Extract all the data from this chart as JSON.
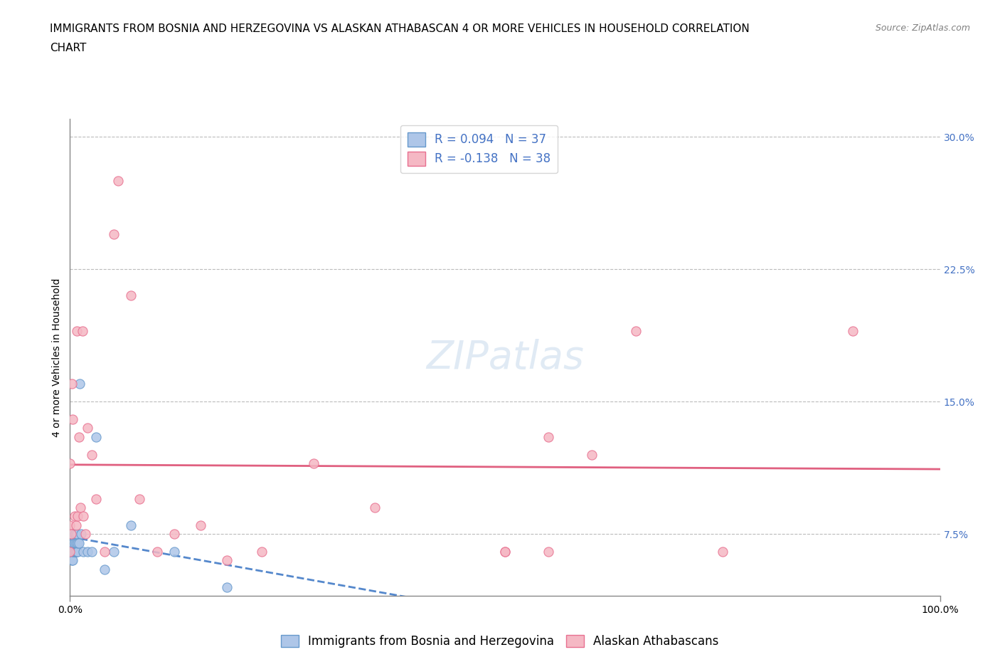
{
  "title_line1": "IMMIGRANTS FROM BOSNIA AND HERZEGOVINA VS ALASKAN ATHABASCAN 4 OR MORE VEHICLES IN HOUSEHOLD CORRELATION",
  "title_line2": "CHART",
  "source": "Source: ZipAtlas.com",
  "ylabel": "4 or more Vehicles in Household",
  "xlim": [
    0.0,
    1.0
  ],
  "ylim": [
    0.04,
    0.31
  ],
  "xticks": [
    0.0,
    1.0
  ],
  "xticklabels": [
    "0.0%",
    "100.0%"
  ],
  "yticks": [
    0.075,
    0.15,
    0.225,
    0.3
  ],
  "yticklabels": [
    "7.5%",
    "15.0%",
    "22.5%",
    "30.0%"
  ],
  "blue_fill_color": "#aec6e8",
  "blue_edge_color": "#6699cc",
  "pink_fill_color": "#f5b8c4",
  "pink_edge_color": "#e87090",
  "blue_trend_color": "#5588cc",
  "pink_trend_color": "#e06080",
  "legend_r_blue": "R = 0.094",
  "legend_n_blue": "N = 37",
  "legend_r_pink": "R = -0.138",
  "legend_n_pink": "N = 38",
  "r_blue": 0.094,
  "r_pink": -0.138,
  "watermark": "ZIPatlas",
  "blue_points_x": [
    0.0,
    0.0,
    0.001,
    0.001,
    0.001,
    0.002,
    0.002,
    0.002,
    0.002,
    0.003,
    0.003,
    0.003,
    0.004,
    0.004,
    0.005,
    0.005,
    0.005,
    0.006,
    0.006,
    0.007,
    0.007,
    0.008,
    0.008,
    0.009,
    0.009,
    0.01,
    0.011,
    0.013,
    0.015,
    0.02,
    0.025,
    0.03,
    0.04,
    0.05,
    0.07,
    0.12,
    0.18
  ],
  "blue_points_y": [
    0.07,
    0.075,
    0.065,
    0.07,
    0.075,
    0.06,
    0.065,
    0.07,
    0.075,
    0.06,
    0.065,
    0.07,
    0.065,
    0.07,
    0.065,
    0.07,
    0.075,
    0.065,
    0.075,
    0.065,
    0.07,
    0.065,
    0.075,
    0.065,
    0.07,
    0.07,
    0.16,
    0.075,
    0.065,
    0.065,
    0.065,
    0.13,
    0.055,
    0.065,
    0.08,
    0.065,
    0.045
  ],
  "pink_points_x": [
    0.0,
    0.0,
    0.0,
    0.001,
    0.002,
    0.003,
    0.005,
    0.007,
    0.008,
    0.009,
    0.01,
    0.012,
    0.014,
    0.015,
    0.018,
    0.02,
    0.025,
    0.03,
    0.04,
    0.05,
    0.055,
    0.07,
    0.08,
    0.1,
    0.12,
    0.15,
    0.18,
    0.22,
    0.28,
    0.35,
    0.5,
    0.55,
    0.6,
    0.65,
    0.75,
    0.9,
    0.55,
    0.5
  ],
  "pink_points_y": [
    0.065,
    0.08,
    0.115,
    0.075,
    0.16,
    0.14,
    0.085,
    0.08,
    0.19,
    0.085,
    0.13,
    0.09,
    0.19,
    0.085,
    0.075,
    0.135,
    0.12,
    0.095,
    0.065,
    0.245,
    0.275,
    0.21,
    0.095,
    0.065,
    0.075,
    0.08,
    0.06,
    0.065,
    0.115,
    0.09,
    0.065,
    0.065,
    0.12,
    0.19,
    0.065,
    0.19,
    0.13,
    0.065
  ],
  "title_fontsize": 11,
  "source_fontsize": 9,
  "ylabel_fontsize": 10,
  "tick_fontsize": 10,
  "legend_fontsize": 12,
  "watermark_fontsize": 40,
  "background_color": "#ffffff",
  "grid_color": "#bbbbbb",
  "right_tick_color": "#4472c4",
  "text_color": "#222222"
}
